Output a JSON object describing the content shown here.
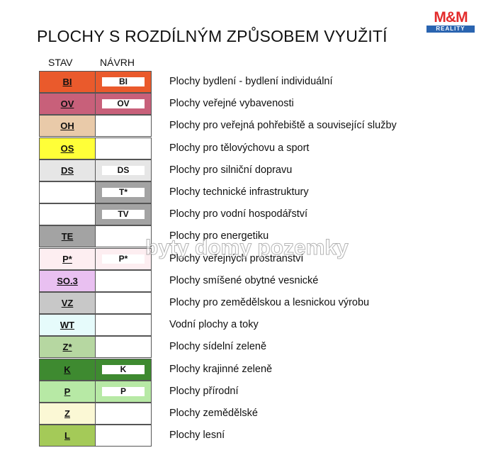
{
  "title": "PLOCHY S ROZDÍLNÝM ZPŮSOBEM VYUŽITÍ",
  "logo": {
    "brand": "M&M",
    "sub": "REALITY"
  },
  "watermark": "byty domy pozemky",
  "columns": [
    "STAV",
    "NÁVRH"
  ],
  "rows": [
    {
      "stav": "BI",
      "navrh": "BI",
      "label": "Plochy bydlení - bydlení individuální",
      "color": "#ea5a2c"
    },
    {
      "stav": "OV",
      "navrh": "OV",
      "label": "Plochy veřejné vybavenosti",
      "color": "#c8607a"
    },
    {
      "stav": "OH",
      "label": "Plochy pro veřejná pohřebiště a související služby",
      "color": "#e9caa9"
    },
    {
      "stav": "OS",
      "label": "Plochy  pro tělovýchovu a sport",
      "color": "#ffff38"
    },
    {
      "stav": "DS",
      "navrh": "DS",
      "label": "Plochy pro silniční dopravu",
      "color": "#e6e6e6"
    },
    {
      "navrh": "T*",
      "label": "Plochy technické infrastruktury",
      "color": "#a3a3a3"
    },
    {
      "navrh": "TV",
      "label": "Plochy pro vodní hospodářství",
      "color": "#a3a3a3"
    },
    {
      "stav": "TE",
      "label": "Plochy pro energetiku",
      "color": "#a3a3a3"
    },
    {
      "stav": "P*",
      "navrh": "P*",
      "label": "Plochy veřejných prostranství",
      "color": "#fdeef1"
    },
    {
      "stav": "SO.3",
      "label": "Plochy smíšené obytné vesnické",
      "color": "#e9c0f1"
    },
    {
      "stav": "VZ",
      "label": "Plochy pro zemědělskou a lesnickou výrobu",
      "color": "#c8c8c8"
    },
    {
      "stav": "WT",
      "label": "Vodní plochy a toky",
      "color": "#e6fbfb"
    },
    {
      "stav": "Z*",
      "label": "Plochy sídelní zeleně",
      "color": "#b6d7a1"
    },
    {
      "stav": "K",
      "navrh": "K",
      "label": "Plochy krajinné zeleně",
      "color": "#3e8a30"
    },
    {
      "stav": "P",
      "navrh": "P",
      "label": "Plochy přírodní",
      "color": "#b7e9a5"
    },
    {
      "stav": "Z",
      "label": "Plochy zemědělské",
      "color": "#fbf8d5"
    },
    {
      "stav": "L",
      "label": "Plochy lesní",
      "color": "#a4ca58"
    }
  ]
}
